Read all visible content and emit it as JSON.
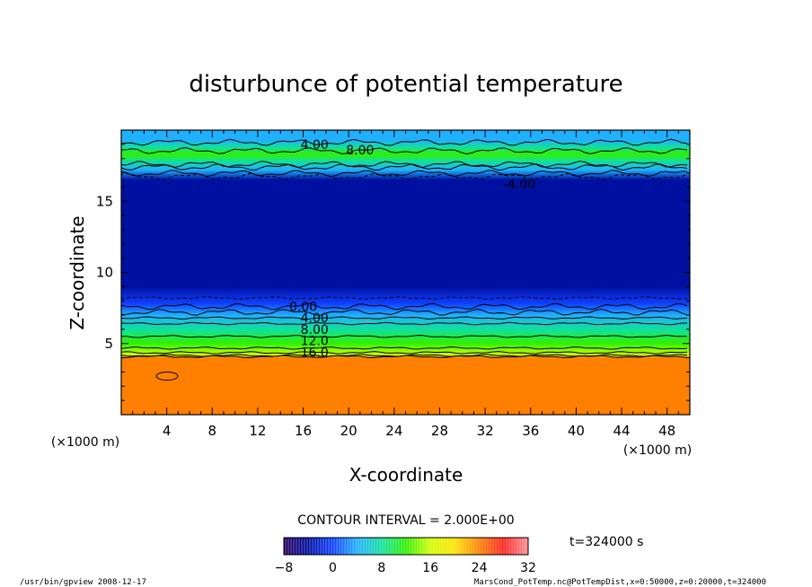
{
  "chart_data": {
    "type": "heatmap",
    "title": "disturbunce of potential temperature",
    "xlabel": "X-coordinate",
    "ylabel": "Z-coordinate",
    "x_unit": "(×1000 m)",
    "y_unit": "(×1000 m)",
    "xlim": [
      0,
      50
    ],
    "ylim": [
      0,
      20
    ],
    "xticks": [
      4,
      8,
      12,
      16,
      20,
      24,
      28,
      32,
      36,
      40,
      44,
      48
    ],
    "yticks": [
      5,
      10,
      15
    ],
    "contour_interval_label": "CONTOUR INTERVAL = 2.000E+00",
    "time_label": "t=324000 s",
    "colorbar": {
      "min": -8,
      "max": 32,
      "ticks": [
        "−8",
        "0",
        "8",
        "16",
        "24",
        "32"
      ],
      "tick_values": [
        -8,
        0,
        8,
        16,
        24,
        32
      ],
      "colors": [
        "#2a0060",
        "#0010a0",
        "#1040ff",
        "#20b0ff",
        "#10e0a0",
        "#30f000",
        "#d0ff00",
        "#ffe000",
        "#ff8000",
        "#ff2020",
        "#ff9090"
      ]
    },
    "vertical_profile": [
      {
        "z": 0.0,
        "value": 22
      },
      {
        "z": 4.0,
        "value": 22
      },
      {
        "z": 4.2,
        "value": 17
      },
      {
        "z": 5.0,
        "value": 12
      },
      {
        "z": 6.0,
        "value": 8
      },
      {
        "z": 7.0,
        "value": 3
      },
      {
        "z": 7.8,
        "value": -1
      },
      {
        "z": 9.0,
        "value": -4
      },
      {
        "z": 12.0,
        "value": -5
      },
      {
        "z": 15.0,
        "value": -5
      },
      {
        "z": 16.5,
        "value": -4
      },
      {
        "z": 17.2,
        "value": 2
      },
      {
        "z": 17.8,
        "value": 8
      },
      {
        "z": 18.3,
        "value": 10
      },
      {
        "z": 18.8,
        "value": 6
      },
      {
        "z": 19.3,
        "value": 3
      },
      {
        "z": 20.0,
        "value": 2
      }
    ],
    "contour_labels": [
      {
        "text": "4.00",
        "x": 17.0,
        "z": 19.0
      },
      {
        "text": "8.00",
        "x": 21.0,
        "z": 18.6
      },
      {
        "text": "-4.00",
        "x": 35.0,
        "z": 16.2
      },
      {
        "text": "0.00",
        "x": 16.0,
        "z": 7.6
      },
      {
        "text": "4.00",
        "x": 17.0,
        "z": 6.8
      },
      {
        "text": "8.00",
        "x": 17.0,
        "z": 6.0
      },
      {
        "text": "12.0",
        "x": 17.0,
        "z": 5.2
      },
      {
        "text": "16.0",
        "x": 17.0,
        "z": 4.4
      }
    ]
  },
  "footer": {
    "left": "/usr/bin/gpview   2008-12-17",
    "right": "MarsCond_PotTemp.nc@PotTempDist,x=0:50000,z=0:20000,t=324000"
  }
}
